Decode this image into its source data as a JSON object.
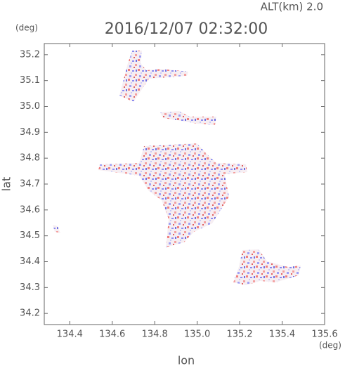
{
  "chart_data": {
    "type": "map",
    "title": "2016/12/07 02:32:00",
    "altitude_label": "ALT(km)  2.0",
    "xlabel": "lon",
    "ylabel": "lat",
    "x_unit": "(deg)",
    "y_unit": "(deg)",
    "xlim": [
      134.28,
      135.6
    ],
    "ylim": [
      34.157,
      35.243
    ],
    "xticks": [
      134.4,
      134.6,
      134.8,
      {
        "value": 135,
        "label": "135.0"
      },
      135.2,
      135.4,
      135.6
    ],
    "yticks": [
      34.2,
      34.3,
      34.4,
      34.5,
      34.6,
      34.7,
      34.8,
      34.9,
      {
        "value": 35,
        "label": "35.0"
      },
      35.1,
      35.2
    ]
  }
}
